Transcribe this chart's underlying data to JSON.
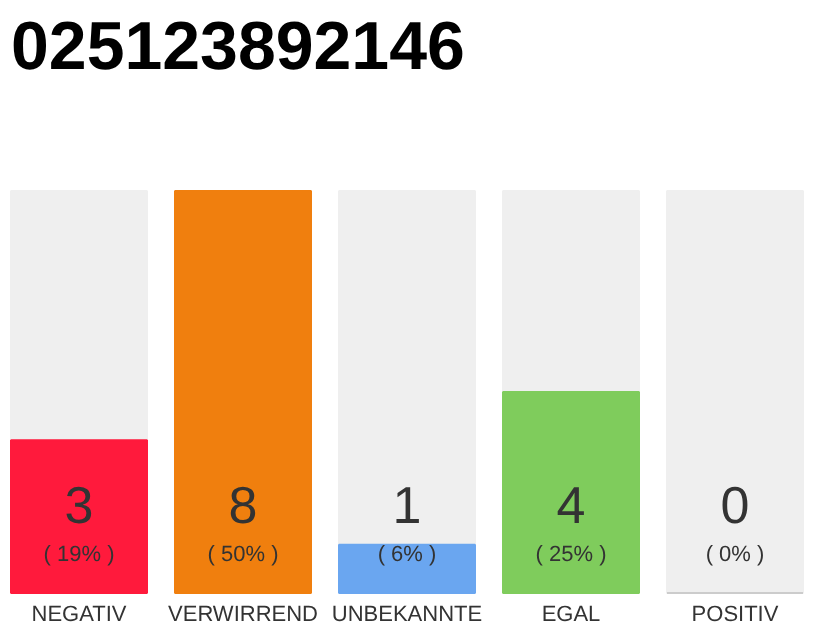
{
  "chart_data": {
    "type": "bar",
    "title": "025123892146",
    "categories": [
      "NEGATIV",
      "VERWIRREND",
      "UNBEKANNTE",
      "EGAL",
      "POSITIV"
    ],
    "values": [
      19,
      50,
      6,
      25,
      0
    ],
    "colors": [
      "#ff1a3c",
      "#f07f0e",
      "#6aa6f0",
      "#7fcc5c",
      "#cccccc"
    ],
    "value_labels": [
      "( 19% )",
      "( 50% )",
      "( 6% )",
      "( 25% )",
      "( 0% )"
    ],
    "annotations": [
      "3",
      "8",
      "1",
      "4",
      "0"
    ]
  }
}
